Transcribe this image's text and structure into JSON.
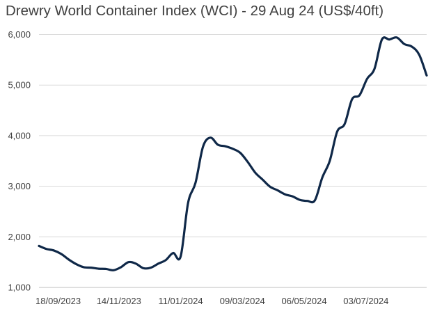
{
  "chart_data": {
    "type": "line",
    "title": "Drewry World Container Index (WCI) - 29 Aug 24 (US$/40ft)",
    "xlabel": "",
    "ylabel": "",
    "ylim": [
      1000,
      6000
    ],
    "yticks": [
      1000,
      2000,
      3000,
      4000,
      5000,
      6000
    ],
    "ytick_labels": [
      "1,000",
      "2,000",
      "3,000",
      "4,000",
      "5,000",
      "6,000"
    ],
    "xtick_labels": [
      "18/09/2023",
      "14/11/2023",
      "11/01/2024",
      "09/03/2024",
      "06/05/2024",
      "03/07/2024"
    ],
    "x_date_range": [
      "2023-08-31",
      "2024-08-29"
    ],
    "grid": "horizontal",
    "line_color": "#0f2848",
    "series": [
      {
        "x": [
          "2023-08-31",
          "2023-09-07",
          "2023-09-14",
          "2023-09-21",
          "2023-09-28",
          "2023-10-05",
          "2023-10-12",
          "2023-10-19",
          "2023-10-26",
          "2023-11-02",
          "2023-11-09",
          "2023-11-16",
          "2023-11-23",
          "2023-11-30",
          "2023-12-07",
          "2023-12-14",
          "2023-12-21",
          "2023-12-28",
          "2024-01-04",
          "2024-01-11",
          "2024-01-18",
          "2024-01-25",
          "2024-02-01",
          "2024-02-08",
          "2024-02-15",
          "2024-02-22",
          "2024-02-29",
          "2024-03-07",
          "2024-03-14",
          "2024-03-21",
          "2024-03-28",
          "2024-04-04",
          "2024-04-11",
          "2024-04-18",
          "2024-04-25",
          "2024-05-02",
          "2024-05-09",
          "2024-05-16",
          "2024-05-23",
          "2024-05-30",
          "2024-06-06",
          "2024-06-13",
          "2024-06-20",
          "2024-06-27",
          "2024-07-04",
          "2024-07-11",
          "2024-07-18",
          "2024-07-25",
          "2024-08-01",
          "2024-08-08",
          "2024-08-15",
          "2024-08-22",
          "2024-08-29"
        ],
        "values": [
          1820,
          1760,
          1730,
          1660,
          1550,
          1460,
          1400,
          1390,
          1370,
          1365,
          1340,
          1400,
          1500,
          1470,
          1380,
          1390,
          1470,
          1540,
          1680,
          1610,
          2670,
          3070,
          3780,
          3960,
          3820,
          3790,
          3740,
          3660,
          3480,
          3270,
          3130,
          2990,
          2920,
          2840,
          2800,
          2730,
          2710,
          2720,
          3170,
          3500,
          4080,
          4230,
          4720,
          4800,
          5120,
          5320,
          5900,
          5900,
          5940,
          5810,
          5760,
          5600,
          5190
        ]
      }
    ]
  }
}
